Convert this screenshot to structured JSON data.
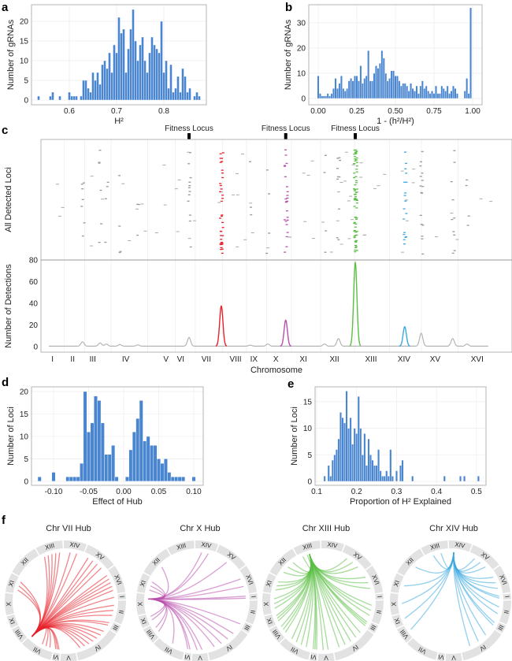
{
  "panel_letters": [
    "a",
    "b",
    "c",
    "d",
    "e",
    "f"
  ],
  "chart_data": [
    {
      "id": "a",
      "type": "bar",
      "title": "",
      "xlabel": "H²",
      "ylabel": "Number of gRNAs",
      "xlim": [
        0.52,
        0.89
      ],
      "ylim": [
        -1.2,
        24.2
      ],
      "xticks": [
        0.6,
        0.7,
        0.8
      ],
      "xtick_labels": [
        "0.6",
        "0.7",
        "0.8"
      ],
      "yticks": [
        0,
        5,
        10,
        15,
        20
      ],
      "ytick_labels": [
        "0",
        "5",
        "10",
        "15",
        "20"
      ],
      "bin_width": 0.005,
      "x": [
        0.535,
        0.56,
        0.565,
        0.58,
        0.6,
        0.605,
        0.61,
        0.615,
        0.625,
        0.63,
        0.635,
        0.64,
        0.645,
        0.65,
        0.655,
        0.66,
        0.665,
        0.67,
        0.675,
        0.68,
        0.685,
        0.69,
        0.695,
        0.7,
        0.705,
        0.71,
        0.715,
        0.72,
        0.725,
        0.73,
        0.735,
        0.74,
        0.745,
        0.75,
        0.755,
        0.76,
        0.765,
        0.77,
        0.775,
        0.78,
        0.785,
        0.79,
        0.795,
        0.8,
        0.805,
        0.81,
        0.815,
        0.82,
        0.825,
        0.83,
        0.835,
        0.84,
        0.845,
        0.85,
        0.855,
        0.865,
        0.87,
        0.875
      ],
      "values": [
        1,
        1,
        2,
        1,
        2,
        1,
        1,
        1,
        1,
        5,
        5,
        3,
        2,
        7,
        5,
        7,
        4,
        9,
        10,
        8,
        12,
        7,
        14,
        12,
        21,
        17,
        18,
        7,
        13,
        18,
        23,
        15,
        10,
        14,
        16,
        10,
        7,
        12,
        16,
        14,
        13,
        12,
        20,
        7,
        10,
        3,
        9,
        2,
        3,
        6,
        2,
        8,
        6,
        2,
        3,
        1,
        2,
        1
      ]
    },
    {
      "id": "b",
      "type": "bar",
      "title": "",
      "xlabel": "1 - (h²/H²)",
      "ylabel": "Number of gRNAs",
      "xlim": [
        -0.061,
        1.061
      ],
      "ylim": [
        -2.5,
        37.2
      ],
      "xticks": [
        0,
        0.25,
        0.5,
        0.75,
        1
      ],
      "xtick_labels": [
        "0.00",
        "0.25",
        "0.50",
        "0.75",
        "1.00"
      ],
      "yticks": [
        0,
        10,
        20,
        30
      ],
      "ytick_labels": [
        "0",
        "10",
        "20",
        "30"
      ],
      "bin_width": 0.0125,
      "x": [
        0,
        0.0125,
        0.025,
        0.0375,
        0.05,
        0.0625,
        0.075,
        0.0875,
        0.1,
        0.1125,
        0.125,
        0.1375,
        0.15,
        0.1625,
        0.175,
        0.1875,
        0.2,
        0.2125,
        0.225,
        0.2375,
        0.25,
        0.2625,
        0.275,
        0.2875,
        0.3,
        0.3125,
        0.325,
        0.3375,
        0.35,
        0.3625,
        0.375,
        0.3875,
        0.4,
        0.4125,
        0.425,
        0.4375,
        0.45,
        0.4625,
        0.475,
        0.4875,
        0.5,
        0.5125,
        0.525,
        0.5375,
        0.55,
        0.5625,
        0.575,
        0.5875,
        0.6,
        0.6125,
        0.625,
        0.6375,
        0.65,
        0.6625,
        0.675,
        0.6875,
        0.7,
        0.7125,
        0.725,
        0.7375,
        0.75,
        0.7625,
        0.775,
        0.7875,
        0.8,
        0.8125,
        0.825,
        0.8375,
        0.85,
        0.8625,
        0.875,
        0.8875,
        0.9,
        0.95,
        0.9625,
        0.975,
        0.9875
      ],
      "values": [
        9,
        2,
        1,
        1,
        1,
        2,
        1,
        2,
        4,
        8,
        4,
        6,
        9,
        4,
        3,
        4,
        7,
        8,
        7,
        9,
        9,
        7,
        13,
        6,
        8,
        9,
        19,
        7,
        7,
        10,
        13,
        12,
        14,
        19,
        16,
        10,
        7,
        8,
        11,
        11,
        9,
        9,
        7,
        5,
        6,
        6,
        5,
        3,
        6,
        4,
        3,
        5,
        2,
        5,
        7,
        4,
        5,
        3,
        2,
        3,
        2,
        5,
        2,
        2,
        5,
        4,
        3,
        5,
        2,
        3,
        5,
        4,
        2,
        3,
        8,
        2,
        36
      ]
    },
    {
      "id": "c",
      "type": "line",
      "xlabel": "Chromosome",
      "ylabel_top": "All Detected Loci",
      "ylabel": "Number of Detections",
      "x_units": "Mb",
      "xlim": [
        -0.215,
        12.65
      ],
      "ylim": [
        -5,
        80
      ],
      "yticks": [
        0,
        20,
        40,
        60,
        80
      ],
      "ytick_labels": [
        "0",
        "20",
        "40",
        "60",
        "80"
      ],
      "chromosomes": [
        {
          "label": "I",
          "pos": 0.1
        },
        {
          "label": "II",
          "pos": 0.65
        },
        {
          "label": "III",
          "pos": 1.2
        },
        {
          "label": "IV",
          "pos": 2.1
        },
        {
          "label": "V",
          "pos": 3.2
        },
        {
          "label": "VI",
          "pos": 3.6
        },
        {
          "label": "VII",
          "pos": 4.3
        },
        {
          "label": "VIII",
          "pos": 5.1
        },
        {
          "label": "IX",
          "pos": 5.6
        },
        {
          "label": "X",
          "pos": 6.2
        },
        {
          "label": "XI",
          "pos": 6.95
        },
        {
          "label": "XII",
          "pos": 7.8
        },
        {
          "label": "XIII",
          "pos": 8.8
        },
        {
          "label": "XIV",
          "pos": 9.7
        },
        {
          "label": "XV",
          "pos": 10.55
        },
        {
          "label": "XVI",
          "pos": 11.7
        }
      ],
      "fitness_loci": [
        {
          "label": "Fitness Locus",
          "pos": 3.83
        },
        {
          "label": "Fitness Locus",
          "pos": 6.47
        },
        {
          "label": "Fitness Locus",
          "pos": 8.37
        }
      ],
      "peaks": [
        {
          "pos": 0.92,
          "height": 4,
          "color": "#b0b0b0"
        },
        {
          "pos": 1.4,
          "height": 3,
          "color": "#b0b0b0"
        },
        {
          "pos": 1.57,
          "height": 2,
          "color": "#b0b0b0"
        },
        {
          "pos": 1.94,
          "height": 1.5,
          "color": "#b0b0b0"
        },
        {
          "pos": 2.43,
          "height": 1.2,
          "color": "#b0b0b0"
        },
        {
          "pos": 3.83,
          "height": 8,
          "color": "#b0b0b0"
        },
        {
          "pos": 4.71,
          "height": 37,
          "color": "#e8202a"
        },
        {
          "pos": 5.5,
          "height": 1,
          "color": "#b0b0b0"
        },
        {
          "pos": 5.98,
          "height": 2,
          "color": "#b0b0b0"
        },
        {
          "pos": 6.47,
          "height": 24,
          "color": "#b94fad"
        },
        {
          "pos": 7.53,
          "height": 2,
          "color": "#b0b0b0"
        },
        {
          "pos": 7.91,
          "height": 7,
          "color": "#b0b0b0"
        },
        {
          "pos": 8.37,
          "height": 77,
          "color": "#5bbf45"
        },
        {
          "pos": 9.72,
          "height": 18,
          "color": "#3aa8e0"
        },
        {
          "pos": 10.17,
          "height": 12,
          "color": "#b0b0b0"
        },
        {
          "pos": 11.03,
          "height": 7,
          "color": "#b0b0b0"
        },
        {
          "pos": 11.42,
          "height": 2,
          "color": "#b0b0b0"
        }
      ]
    },
    {
      "id": "d",
      "type": "bar",
      "xlabel": "Effect of Hub",
      "ylabel": "Number of Loci",
      "xlim": [
        -0.1315,
        0.1135
      ],
      "ylim": [
        -0.9,
        21.05
      ],
      "xticks": [
        -0.1,
        -0.05,
        0,
        0.05,
        0.1
      ],
      "xtick_labels": [
        "-0.10",
        "-0.05",
        "0.00",
        "0.05",
        "0.10"
      ],
      "yticks": [
        0,
        5,
        10,
        15,
        20
      ],
      "ytick_labels": [
        "0",
        "5",
        "10",
        "15",
        "20"
      ],
      "bin_width": 0.005,
      "x": [
        -0.12,
        -0.1,
        -0.08,
        -0.075,
        -0.07,
        -0.065,
        -0.06,
        -0.055,
        -0.05,
        -0.045,
        -0.04,
        -0.035,
        -0.03,
        -0.025,
        -0.02,
        -0.015,
        -0.01,
        0.005,
        0.01,
        0.015,
        0.02,
        0.025,
        0.03,
        0.035,
        0.04,
        0.045,
        0.05,
        0.055,
        0.06,
        0.065,
        0.07,
        0.075,
        0.08,
        0.085,
        0.1
      ],
      "values": [
        1,
        2,
        1,
        1,
        1,
        1,
        4,
        20,
        11,
        13,
        19,
        18,
        13,
        6,
        6,
        8,
        1,
        1,
        7,
        11,
        14,
        18,
        9,
        10,
        8,
        8,
        5,
        4,
        5,
        2,
        1,
        1,
        1,
        1,
        1
      ]
    },
    {
      "id": "e",
      "type": "bar",
      "xlabel": "Proportion of H² Explained",
      "ylabel": "Number of Loci",
      "xlim": [
        0.096,
        0.524
      ],
      "ylim": [
        -0.74,
        17.8
      ],
      "xticks": [
        0.1,
        0.2,
        0.3,
        0.4,
        0.5
      ],
      "xtick_labels": [
        "0.1",
        "0.2",
        "0.3",
        "0.4",
        "0.5"
      ],
      "yticks": [
        0,
        5,
        10,
        15
      ],
      "ytick_labels": [
        "0",
        "5",
        "10",
        "15"
      ],
      "bin_width": 0.005,
      "x": [
        0.12,
        0.13,
        0.135,
        0.14,
        0.145,
        0.15,
        0.155,
        0.16,
        0.165,
        0.17,
        0.175,
        0.18,
        0.185,
        0.19,
        0.195,
        0.2,
        0.205,
        0.21,
        0.215,
        0.22,
        0.225,
        0.23,
        0.235,
        0.24,
        0.245,
        0.25,
        0.255,
        0.26,
        0.265,
        0.27,
        0.275,
        0.28,
        0.285,
        0.29,
        0.3,
        0.31,
        0.315,
        0.34,
        0.42,
        0.46,
        0.47,
        0.505
      ],
      "values": [
        1,
        3,
        1,
        4,
        5,
        6,
        8,
        13,
        12,
        11,
        17,
        10,
        12,
        7,
        10,
        9,
        16,
        10,
        5,
        9,
        3,
        8,
        5,
        4,
        3,
        3,
        6,
        2,
        1,
        1,
        2,
        1,
        6,
        1,
        2,
        3,
        4,
        1,
        1,
        1,
        1,
        1
      ]
    },
    {
      "id": "f",
      "type": "chord",
      "ring_labels": [
        "I",
        "II",
        "III",
        "IV",
        "V",
        "VI",
        "VII",
        "VIII",
        "IX",
        "X",
        "XI",
        "XII",
        "XIII",
        "XIV",
        "XV",
        "XVI"
      ],
      "hubs": [
        {
          "title": "Chr VII Hub",
          "hub": "VII",
          "hub_pos": 0.92,
          "color": "#e8202a",
          "targets": {
            "XI": 3,
            "XIII": 5,
            "XIV": 2,
            "XV": 4,
            "XVI": 5,
            "I": 1,
            "II": 3,
            "III": 2,
            "IV": 7,
            "VI": 3,
            "VII": 3
          }
        },
        {
          "title": "Chr X Hub",
          "hub": "X",
          "hub_pos": 0.75,
          "color": "#b94fad",
          "targets": {
            "XII": 1,
            "XI": 3,
            "XIV": 2,
            "XV": 1,
            "XVI": 2,
            "I": 2,
            "IX": 2,
            "VIII": 2,
            "VII": 1,
            "VI": 2,
            "V": 2,
            "IV": 4,
            "III": 1
          }
        },
        {
          "title": "Chr XIII Hub",
          "hub": "XIII",
          "hub_pos": 0.5,
          "color": "#5bbf45",
          "targets": {
            "XI": 3,
            "XII": 3,
            "X": 3,
            "IX": 3,
            "VIII": 3,
            "VII": 4,
            "VI": 3,
            "V": 2,
            "IV": 5,
            "III": 3,
            "II": 3,
            "XV": 3,
            "XVI": 3,
            "XIII": 2
          }
        },
        {
          "title": "Chr XIV Hub",
          "hub": "XIV",
          "hub_pos": 0.25,
          "color": "#3aa8e0",
          "targets": {
            "XII": 1,
            "XIII": 2,
            "XV": 3,
            "XVI": 3,
            "I": 2,
            "II": 2,
            "III": 2,
            "IV": 3,
            "VIII": 1,
            "IX": 1,
            "X": 1,
            "XI": 1
          }
        }
      ]
    }
  ]
}
